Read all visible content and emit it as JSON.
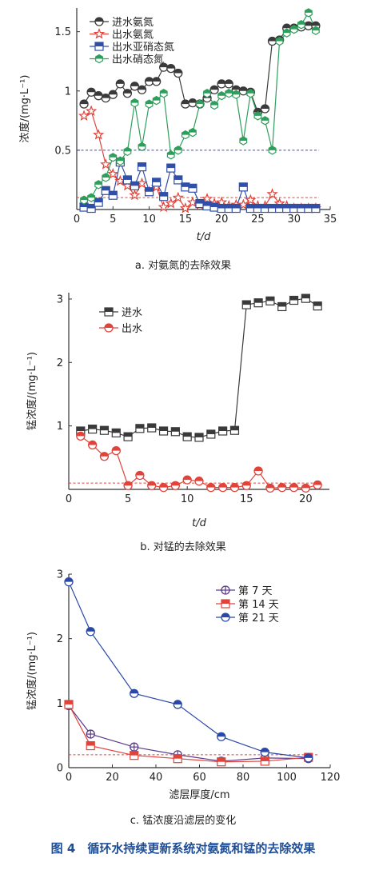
{
  "figure_caption": "图 4　循环水持续更新系统对氨氮和锰的去除效果",
  "chart_data": [
    {
      "id": "a",
      "type": "line",
      "caption": "a. 对氨氮的去除效果",
      "xlabel": "t/d",
      "ylabel": "浓度/(mg·L⁻¹)",
      "xlim": [
        0,
        35
      ],
      "ylim": [
        0,
        1.7
      ],
      "xticks": [
        0,
        5,
        10,
        15,
        20,
        25,
        30,
        35
      ],
      "yticks": [
        0.5,
        1.0,
        1.5
      ],
      "legend_position": "top-left",
      "reference_lines": [
        {
          "y": 0.5,
          "color": "#3f4aa8"
        },
        {
          "y": 0.1,
          "color": "#e0433a"
        }
      ],
      "series": [
        {
          "name": "进水氨氮",
          "color": "#3a3a3a",
          "marker": "circle",
          "x": [
            1,
            2,
            3,
            4,
            5,
            6,
            7,
            8,
            9,
            10,
            11,
            12,
            13,
            14,
            15,
            16,
            17,
            18,
            19,
            20,
            21,
            22,
            23,
            24,
            25,
            26,
            27,
            28,
            29,
            30,
            31,
            32,
            33
          ],
          "y": [
            0.89,
            0.99,
            0.96,
            0.94,
            0.97,
            1.06,
            0.98,
            1.04,
            1.01,
            1.08,
            1.08,
            1.2,
            1.19,
            1.15,
            0.89,
            0.9,
            0.89,
            0.94,
            1.01,
            1.06,
            1.06,
            1.01,
            1.0,
            0.99,
            0.82,
            0.85,
            1.42,
            1.43,
            1.53,
            1.53,
            1.54,
            1.55,
            1.55
          ]
        },
        {
          "name": "出水氨氮",
          "color": "#e0433a",
          "marker": "star",
          "x": [
            1,
            2,
            3,
            4,
            5,
            6,
            7,
            8,
            9,
            10,
            11,
            12,
            13,
            14,
            15,
            16,
            17,
            18,
            19,
            20,
            21,
            22,
            23,
            24,
            25,
            26,
            27,
            28,
            29,
            30,
            31,
            32,
            33
          ],
          "y": [
            0.79,
            0.83,
            0.63,
            0.38,
            0.3,
            0.24,
            0.2,
            0.12,
            0.22,
            0.15,
            0.19,
            0.02,
            0.05,
            0.1,
            0.01,
            0.06,
            0.04,
            0.09,
            0.05,
            0.06,
            0.03,
            0.04,
            0.04,
            0.08,
            0.03,
            0.03,
            0.13,
            0.05,
            0.03,
            0.01,
            0.01,
            0.01,
            0.01
          ]
        },
        {
          "name": "出水亚硝态氮",
          "color": "#2f4fa8",
          "marker": "square",
          "x": [
            1,
            2,
            3,
            4,
            5,
            6,
            7,
            8,
            9,
            10,
            11,
            12,
            13,
            14,
            15,
            16,
            17,
            18,
            19,
            20,
            21,
            22,
            23,
            24,
            25,
            26,
            27,
            28,
            29,
            30,
            31,
            32,
            33
          ],
          "y": [
            0.02,
            0.01,
            0.06,
            0.16,
            0.12,
            0.4,
            0.25,
            0.2,
            0.36,
            0.15,
            0.23,
            0.11,
            0.35,
            0.25,
            0.19,
            0.18,
            0.05,
            0.03,
            0.02,
            0.01,
            0.01,
            0.01,
            0.19,
            0.01,
            0.01,
            0.01,
            0.01,
            0.01,
            0.01,
            0.01,
            0.01,
            0.01,
            0.01
          ]
        },
        {
          "name": "出水硝态氮",
          "color": "#2e9e5b",
          "marker": "hexagon",
          "x": [
            1,
            2,
            3,
            4,
            5,
            6,
            7,
            8,
            9,
            10,
            11,
            12,
            13,
            14,
            15,
            16,
            17,
            18,
            19,
            20,
            21,
            22,
            23,
            24,
            25,
            26,
            27,
            28,
            29,
            30,
            31,
            32,
            33
          ],
          "y": [
            0.08,
            0.1,
            0.21,
            0.27,
            0.44,
            0.41,
            0.49,
            0.9,
            0.53,
            0.89,
            0.92,
            0.98,
            0.46,
            0.5,
            0.63,
            0.65,
            0.89,
            0.98,
            0.88,
            0.96,
            0.98,
            0.97,
            0.58,
            0.98,
            0.79,
            0.75,
            0.5,
            1.42,
            1.49,
            1.52,
            1.56,
            1.66,
            1.51
          ]
        }
      ]
    },
    {
      "id": "b",
      "type": "line",
      "caption": "b. 对锰的去除效果",
      "xlabel": "t/d",
      "ylabel": "锰浓度/(mg·L⁻¹)",
      "xlim": [
        0,
        22
      ],
      "ylim": [
        0,
        3.1
      ],
      "xticks": [
        0,
        5,
        10,
        15,
        20
      ],
      "yticks": [
        1,
        2,
        3
      ],
      "legend_position": "top-left",
      "reference_lines": [
        {
          "y": 0.1,
          "color": "#e0433a"
        }
      ],
      "series": [
        {
          "name": "进水",
          "color": "#3a3a3a",
          "marker": "square",
          "x": [
            1,
            2,
            3,
            4,
            5,
            6,
            7,
            8,
            9,
            10,
            11,
            12,
            13,
            14,
            15,
            16,
            17,
            18,
            19,
            20,
            21
          ],
          "y": [
            0.92,
            0.95,
            0.93,
            0.89,
            0.83,
            0.96,
            0.97,
            0.92,
            0.91,
            0.83,
            0.82,
            0.87,
            0.92,
            0.93,
            2.91,
            2.94,
            2.97,
            2.88,
            2.98,
            3.01,
            2.89
          ]
        },
        {
          "name": "出水",
          "color": "#e0433a",
          "marker": "circle",
          "x": [
            1,
            2,
            3,
            4,
            5,
            6,
            7,
            8,
            9,
            10,
            11,
            12,
            13,
            14,
            15,
            16,
            17,
            18,
            19,
            20,
            21
          ],
          "y": [
            0.84,
            0.7,
            0.52,
            0.61,
            0.06,
            0.22,
            0.06,
            0.03,
            0.06,
            0.15,
            0.13,
            0.03,
            0.03,
            0.03,
            0.06,
            0.29,
            0.02,
            0.03,
            0.03,
            0.02,
            0.07
          ]
        }
      ]
    },
    {
      "id": "c",
      "type": "line",
      "caption": "c. 锰浓度沿滤层的变化",
      "xlabel": "滤层厚度/cm",
      "ylabel": "锰浓度/(mg·L⁻¹)",
      "xlim": [
        0,
        120
      ],
      "ylim": [
        0,
        3.0
      ],
      "xticks": [
        0,
        20,
        40,
        60,
        80,
        100,
        120
      ],
      "yticks": [
        0,
        1,
        2,
        3
      ],
      "legend_position": "top-right",
      "reference_lines": [
        {
          "y": 0.2,
          "color": "#e0433a"
        }
      ],
      "series": [
        {
          "name": "第 7 天",
          "color": "#5a3a8a",
          "marker": "circle-cross",
          "x": [
            0,
            10,
            30,
            50,
            70,
            90,
            110
          ],
          "y": [
            0.96,
            0.52,
            0.32,
            0.2,
            0.1,
            0.15,
            0.14
          ]
        },
        {
          "name": "第 14 天",
          "color": "#e0433a",
          "marker": "square",
          "x": [
            0,
            10,
            30,
            50,
            70,
            90,
            110
          ],
          "y": [
            0.98,
            0.34,
            0.19,
            0.14,
            0.09,
            0.1,
            0.16
          ]
        },
        {
          "name": "第 21 天",
          "color": "#2a48a8",
          "marker": "circle",
          "x": [
            0,
            10,
            30,
            50,
            70,
            90,
            110
          ],
          "y": [
            2.88,
            2.11,
            1.15,
            0.98,
            0.48,
            0.24,
            0.15
          ]
        }
      ]
    }
  ]
}
